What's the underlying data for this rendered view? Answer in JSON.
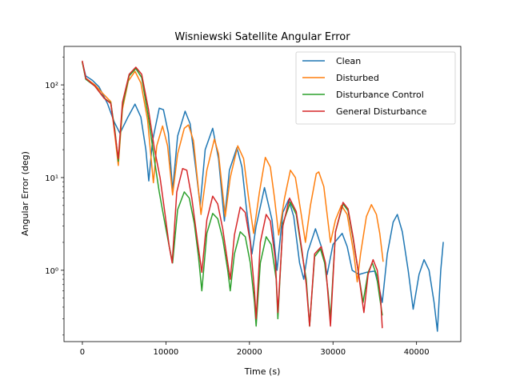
{
  "chart_data": {
    "type": "line",
    "title": "Wisniewski Satellite Angular Error",
    "xlabel": "Time (s)",
    "ylabel": "Angular Error (deg)",
    "xlim": [
      -2200,
      45300
    ],
    "ylim": [
      0.17,
      260
    ],
    "yscale": "log",
    "x_ticks": [
      0,
      10000,
      20000,
      30000,
      40000
    ],
    "x_tick_labels": [
      "0",
      "10000",
      "20000",
      "30000",
      "40000"
    ],
    "y_ticks": [
      1,
      10,
      100
    ],
    "y_tick_labels": [
      "10⁰",
      "10¹",
      "10²"
    ],
    "grid": false,
    "legend_position": "top-right",
    "series": [
      {
        "name": "Clean",
        "color": "#1f77b4",
        "points": [
          [
            0,
            175
          ],
          [
            400,
            125
          ],
          [
            1200,
            112
          ],
          [
            2000,
            95
          ],
          [
            3000,
            63
          ],
          [
            3800,
            40
          ],
          [
            4500,
            30
          ],
          [
            5400,
            44
          ],
          [
            6300,
            62
          ],
          [
            7000,
            45
          ],
          [
            7600,
            20
          ],
          [
            7950,
            9.2
          ],
          [
            8400,
            25
          ],
          [
            9200,
            56
          ],
          [
            9700,
            54
          ],
          [
            10300,
            30
          ],
          [
            10800,
            7.2
          ],
          [
            11400,
            28
          ],
          [
            12300,
            52
          ],
          [
            12900,
            38
          ],
          [
            13600,
            12
          ],
          [
            14100,
            5.0
          ],
          [
            14700,
            20
          ],
          [
            15600,
            34
          ],
          [
            16300,
            16
          ],
          [
            17000,
            3.4
          ],
          [
            17600,
            12
          ],
          [
            18500,
            21
          ],
          [
            19100,
            13
          ],
          [
            19600,
            5
          ],
          [
            20300,
            1.5
          ],
          [
            20800,
            3
          ],
          [
            21800,
            7.8
          ],
          [
            22700,
            3.5
          ],
          [
            23300,
            1.0
          ],
          [
            24000,
            4.2
          ],
          [
            24700,
            5.8
          ],
          [
            25300,
            3.8
          ],
          [
            26000,
            1.2
          ],
          [
            26500,
            0.8
          ],
          [
            27000,
            1.6
          ],
          [
            27900,
            2.8
          ],
          [
            28600,
            1.8
          ],
          [
            29300,
            0.9
          ],
          [
            30000,
            1.9
          ],
          [
            31100,
            2.5
          ],
          [
            31700,
            1.8
          ],
          [
            32300,
            1.0
          ],
          [
            33100,
            0.9
          ],
          [
            34000,
            0.95
          ],
          [
            35000,
            0.98
          ],
          [
            35600,
            0.6
          ],
          [
            35900,
            0.45
          ],
          [
            36500,
            1.5
          ],
          [
            37200,
            3.3
          ],
          [
            37700,
            4.0
          ],
          [
            38300,
            2.6
          ],
          [
            39000,
            1.0
          ],
          [
            39600,
            0.38
          ],
          [
            40300,
            0.9
          ],
          [
            40900,
            1.3
          ],
          [
            41500,
            1.0
          ],
          [
            42100,
            0.45
          ],
          [
            42500,
            0.22
          ],
          [
            42900,
            1.0
          ],
          [
            43200,
            2.0
          ]
        ]
      },
      {
        "name": "Disturbed",
        "color": "#ff7f0e",
        "points": [
          [
            0,
            175
          ],
          [
            400,
            118
          ],
          [
            1500,
            100
          ],
          [
            2600,
            78
          ],
          [
            3400,
            66
          ],
          [
            3900,
            28
          ],
          [
            4300,
            13.5
          ],
          [
            4800,
            55
          ],
          [
            5500,
            110
          ],
          [
            6300,
            140
          ],
          [
            7000,
            105
          ],
          [
            7800,
            42
          ],
          [
            8500,
            8.8
          ],
          [
            8900,
            22
          ],
          [
            9600,
            36
          ],
          [
            10200,
            22
          ],
          [
            10800,
            6.5
          ],
          [
            11400,
            18
          ],
          [
            12200,
            34
          ],
          [
            12700,
            37
          ],
          [
            13300,
            25
          ],
          [
            14200,
            4.0
          ],
          [
            14900,
            12
          ],
          [
            15800,
            26
          ],
          [
            16300,
            18
          ],
          [
            17100,
            3.8
          ],
          [
            17700,
            10
          ],
          [
            18600,
            22
          ],
          [
            19300,
            16
          ],
          [
            19900,
            6
          ],
          [
            20500,
            2.5
          ],
          [
            21200,
            7
          ],
          [
            21900,
            16.5
          ],
          [
            22500,
            13
          ],
          [
            23000,
            6
          ],
          [
            23500,
            2.4
          ],
          [
            24200,
            6
          ],
          [
            24900,
            12
          ],
          [
            25500,
            10
          ],
          [
            26200,
            4
          ],
          [
            26700,
            2.0
          ],
          [
            27300,
            5
          ],
          [
            28000,
            11
          ],
          [
            28300,
            11.5
          ],
          [
            28900,
            8
          ],
          [
            29700,
            2.0
          ],
          [
            30300,
            3.5
          ],
          [
            31000,
            5.0
          ],
          [
            31700,
            4.0
          ],
          [
            32500,
            1.5
          ],
          [
            32900,
            0.75
          ],
          [
            33300,
            1.5
          ],
          [
            34000,
            3.8
          ],
          [
            34600,
            5.1
          ],
          [
            35200,
            4.0
          ],
          [
            35600,
            2.5
          ],
          [
            36000,
            1.25
          ]
        ]
      },
      {
        "name": "Disturbance Control",
        "color": "#2ca02c",
        "points": [
          [
            0,
            175
          ],
          [
            400,
            115
          ],
          [
            1500,
            97
          ],
          [
            2600,
            72
          ],
          [
            3400,
            64
          ],
          [
            3900,
            32
          ],
          [
            4300,
            15
          ],
          [
            4800,
            60
          ],
          [
            5600,
            125
          ],
          [
            6400,
            150
          ],
          [
            7100,
            120
          ],
          [
            7900,
            45
          ],
          [
            8600,
            16
          ],
          [
            9200,
            7
          ],
          [
            9800,
            3.5
          ],
          [
            10400,
            1.8
          ],
          [
            10800,
            1.2
          ],
          [
            11400,
            4.5
          ],
          [
            12200,
            7.0
          ],
          [
            12800,
            6.0
          ],
          [
            13400,
            3.2
          ],
          [
            13900,
            1.4
          ],
          [
            14300,
            0.6
          ],
          [
            14900,
            2.5
          ],
          [
            15600,
            4.1
          ],
          [
            16200,
            3.6
          ],
          [
            16800,
            2.2
          ],
          [
            17400,
            1.0
          ],
          [
            17700,
            0.6
          ],
          [
            18200,
            1.5
          ],
          [
            18900,
            2.6
          ],
          [
            19500,
            2.3
          ],
          [
            20100,
            1.2
          ],
          [
            20600,
            0.45
          ],
          [
            20800,
            0.25
          ],
          [
            21300,
            1.2
          ],
          [
            22000,
            2.3
          ],
          [
            22600,
            1.9
          ],
          [
            23200,
            0.8
          ],
          [
            23400,
            0.3
          ],
          [
            24000,
            3.2
          ],
          [
            24900,
            5.4
          ],
          [
            25600,
            4.0
          ],
          [
            26300,
            1.5
          ],
          [
            26800,
            0.8
          ],
          [
            27200,
            0.25
          ],
          [
            27800,
            1.4
          ],
          [
            28500,
            1.7
          ],
          [
            29000,
            1.2
          ],
          [
            29400,
            0.6
          ],
          [
            29700,
            0.3
          ],
          [
            30300,
            2.6
          ],
          [
            31200,
            5.2
          ],
          [
            31800,
            4.4
          ],
          [
            32400,
            2.2
          ],
          [
            33000,
            1.0
          ],
          [
            33600,
            0.45
          ],
          [
            34200,
            0.95
          ],
          [
            34700,
            1.2
          ],
          [
            35200,
            0.9
          ],
          [
            35600,
            0.5
          ],
          [
            35900,
            0.33
          ]
        ]
      },
      {
        "name": "General Disturbance",
        "color": "#d62728",
        "points": [
          [
            0,
            180
          ],
          [
            400,
            118
          ],
          [
            1500,
            97
          ],
          [
            2600,
            72
          ],
          [
            3400,
            63
          ],
          [
            3900,
            30
          ],
          [
            4300,
            16
          ],
          [
            4800,
            65
          ],
          [
            5600,
            130
          ],
          [
            6400,
            155
          ],
          [
            7100,
            130
          ],
          [
            7900,
            55
          ],
          [
            8600,
            21
          ],
          [
            9300,
            10
          ],
          [
            9900,
            4
          ],
          [
            10400,
            1.8
          ],
          [
            10750,
            1.2
          ],
          [
            11300,
            7
          ],
          [
            12000,
            12.5
          ],
          [
            12500,
            12
          ],
          [
            13100,
            6
          ],
          [
            13800,
            2.0
          ],
          [
            14300,
            0.95
          ],
          [
            14900,
            3.5
          ],
          [
            15600,
            6.3
          ],
          [
            16200,
            5.2
          ],
          [
            16800,
            2.8
          ],
          [
            17400,
            1.2
          ],
          [
            17700,
            0.8
          ],
          [
            18200,
            2.4
          ],
          [
            18900,
            4.8
          ],
          [
            19500,
            4.2
          ],
          [
            20100,
            2.0
          ],
          [
            20600,
            0.6
          ],
          [
            20800,
            0.3
          ],
          [
            21300,
            2.0
          ],
          [
            22000,
            4.0
          ],
          [
            22500,
            3.4
          ],
          [
            23100,
            1.3
          ],
          [
            23400,
            0.35
          ],
          [
            24000,
            3.0
          ],
          [
            24800,
            6.0
          ],
          [
            25600,
            4.3
          ],
          [
            26300,
            1.6
          ],
          [
            26800,
            0.7
          ],
          [
            27200,
            0.25
          ],
          [
            27800,
            1.5
          ],
          [
            28600,
            1.8
          ],
          [
            29100,
            1.2
          ],
          [
            29700,
            0.25
          ],
          [
            30300,
            2.6
          ],
          [
            31200,
            5.4
          ],
          [
            31800,
            4.6
          ],
          [
            32400,
            2.3
          ],
          [
            33000,
            1.0
          ],
          [
            33700,
            0.35
          ],
          [
            34200,
            0.9
          ],
          [
            34800,
            1.3
          ],
          [
            35300,
            1.0
          ],
          [
            35700,
            0.5
          ],
          [
            35900,
            0.24
          ]
        ]
      }
    ]
  }
}
